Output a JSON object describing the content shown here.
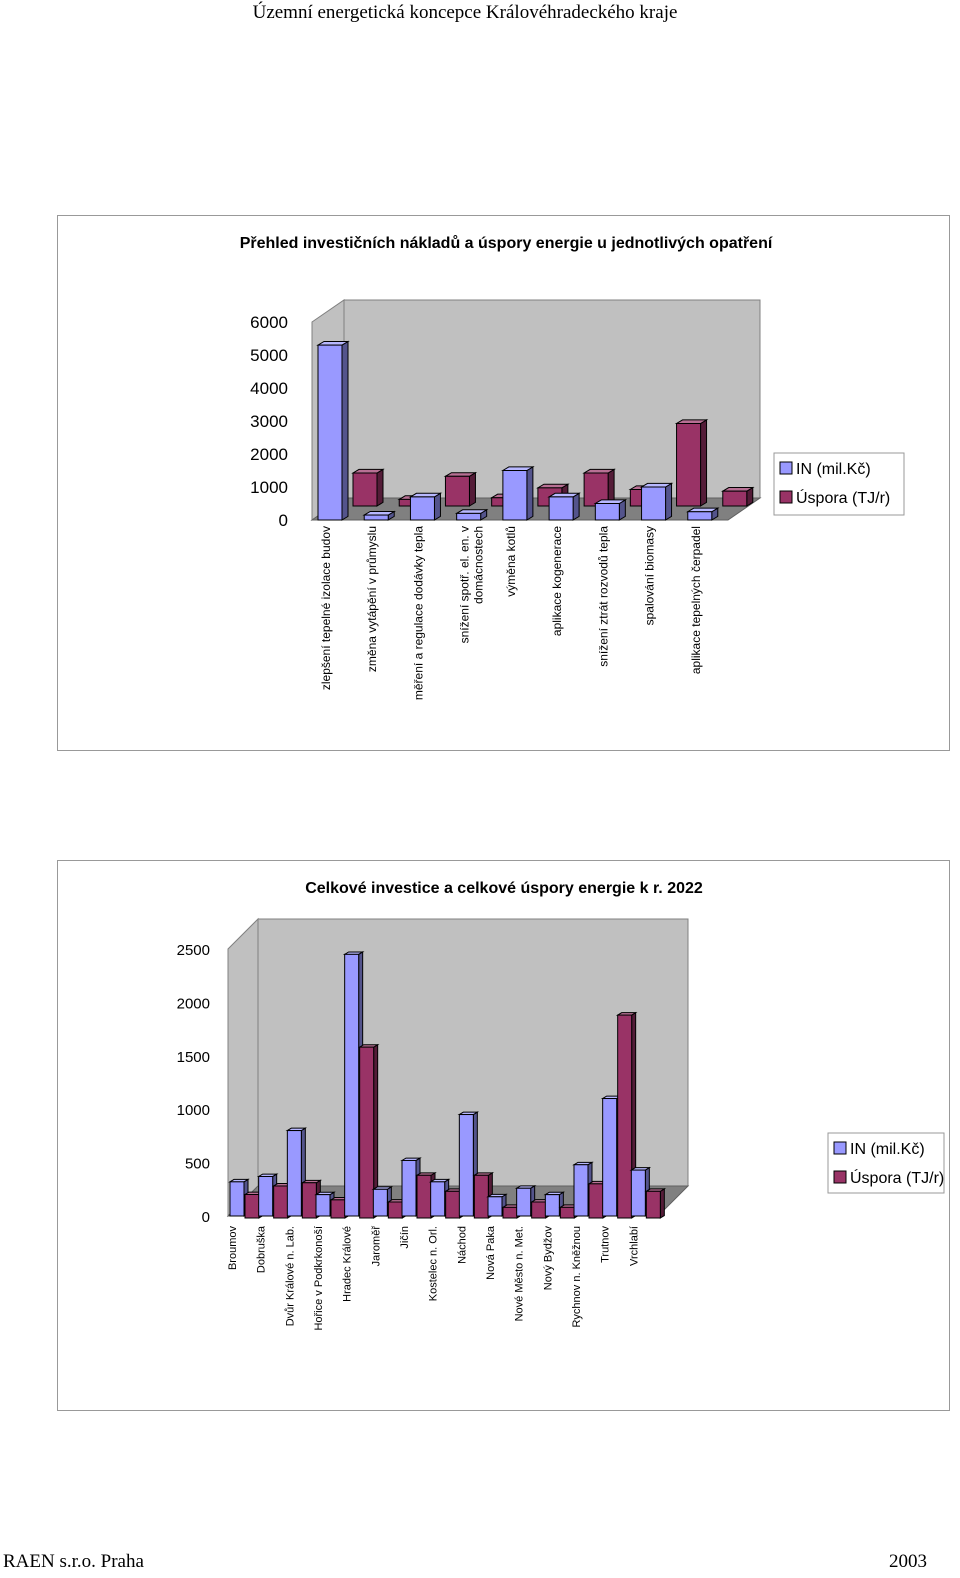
{
  "header": {
    "title": "Územní energetická koncepce Královéhradeckého kraje"
  },
  "footer": {
    "company": "RAEN s.r.o. Praha",
    "year": "2003"
  },
  "colors": {
    "series1": "#9999ff",
    "series2": "#993366"
  },
  "chart_data": [
    {
      "type": "bar",
      "title": "Přehled investičních nákladů a úspory energie u jednotlivých opatření",
      "categories": [
        "zlepšení tepelné izolace budov",
        "změna vytápění v průmyslu",
        "měření a regulace dodávky tepla",
        "snížení spotř. el. en. v domácnostech",
        "výměna kotlů",
        "aplikace kogenerace",
        "snížení ztrát rozvodů tepla",
        "spalování biomasy",
        "aplikace tepelných čerpadel"
      ],
      "series": [
        {
          "name": "IN (mil.Kč)",
          "values": [
            5300,
            150,
            700,
            200,
            1500,
            700,
            500,
            1000,
            250
          ]
        },
        {
          "name": "Úspora (TJ/r)",
          "values": [
            1000,
            200,
            900,
            250,
            550,
            1000,
            500,
            2500,
            450
          ]
        }
      ],
      "yticks": [
        0,
        1000,
        2000,
        3000,
        4000,
        5000,
        6000
      ],
      "ylim": [
        0,
        6000
      ],
      "legend": "right"
    },
    {
      "type": "bar",
      "title": "Celkové investice a celkové úspory energie k r. 2022",
      "categories": [
        "Broumov",
        "Dobruška",
        "Dvůr Králové n. Lab.",
        "Hořice v Podkrkonoší",
        "Hradec Králové",
        "Jaroměř",
        "Jičín",
        "Kostelec n. Orl.",
        "Náchod",
        "Nová Paka",
        "Nové Město n. Met.",
        "Nový Bydžov",
        "Rychnov n. Kněžnou",
        "Trutnov",
        "Vrchlabí"
      ],
      "series": [
        {
          "name": "IN (mil.Kč)",
          "values": [
            320,
            370,
            800,
            200,
            2450,
            250,
            520,
            320,
            950,
            180,
            260,
            200,
            480,
            1100,
            430
          ]
        },
        {
          "name": "Úspora (TJ/r)",
          "values": [
            220,
            300,
            330,
            170,
            1600,
            150,
            400,
            250,
            400,
            100,
            150,
            100,
            320,
            1900,
            250
          ]
        }
      ],
      "yticks": [
        0,
        500,
        1000,
        1500,
        2000,
        2500
      ],
      "ylim": [
        0,
        2500
      ],
      "legend": "right"
    }
  ]
}
